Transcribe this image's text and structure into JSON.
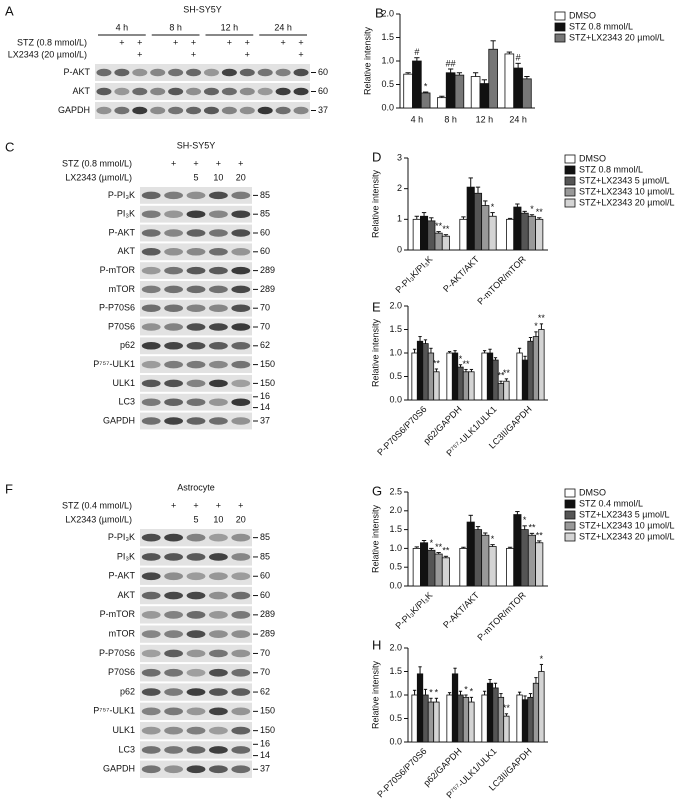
{
  "blots": [
    {
      "label": "A",
      "title": "SH-SY5Y",
      "groups": [
        "4 h",
        "8 h",
        "12 h",
        "24 h"
      ],
      "treatments": [
        {
          "name": "STZ (0.8 mmol/L)",
          "lanes": [
            null,
            "+",
            "+",
            null,
            "+",
            "+",
            null,
            "+",
            "+",
            null,
            "+",
            "+"
          ]
        },
        {
          "name": "LX2343 (20 µmol/L)",
          "lanes": [
            null,
            null,
            "+",
            null,
            null,
            "+",
            null,
            null,
            "+",
            null,
            null,
            "+"
          ]
        }
      ],
      "rows": [
        {
          "name": "P-AKT",
          "mw": [
            60
          ]
        },
        {
          "name": "AKT",
          "mw": [
            60
          ]
        },
        {
          "name": "GAPDH",
          "mw": [
            37
          ]
        }
      ]
    },
    {
      "label": "C",
      "title": "SH-SY5Y",
      "treatments": [
        {
          "name": "STZ (0.8 mmol/L)",
          "lanes": [
            null,
            "+",
            "+",
            "+",
            "+"
          ]
        },
        {
          "name": "LX2343 (µmol/L)",
          "lanes": [
            null,
            null,
            "5",
            "10",
            "20"
          ]
        }
      ],
      "rows": [
        {
          "name": "P-PI₃K",
          "mw": [
            85
          ]
        },
        {
          "name": "PI₃K",
          "mw": [
            85
          ]
        },
        {
          "name": "P-AKT",
          "mw": [
            60
          ]
        },
        {
          "name": "AKT",
          "mw": [
            60
          ]
        },
        {
          "name": "P-mTOR",
          "mw": [
            289
          ]
        },
        {
          "name": "mTOR",
          "mw": [
            289
          ]
        },
        {
          "name": "P-P70S6",
          "mw": [
            70
          ]
        },
        {
          "name": "P70S6",
          "mw": [
            70
          ]
        },
        {
          "name": "p62",
          "mw": [
            62
          ]
        },
        {
          "name": "P⁷⁵⁷-ULK1",
          "mw": [
            150
          ]
        },
        {
          "name": "ULK1",
          "mw": [
            150
          ]
        },
        {
          "name": "LC3",
          "mw": [
            16,
            14
          ]
        },
        {
          "name": "GAPDH",
          "mw": [
            37
          ]
        }
      ]
    },
    {
      "label": "F",
      "title": "Astrocyte",
      "treatments": [
        {
          "name": "STZ (0.4 mmol/L)",
          "lanes": [
            null,
            "+",
            "+",
            "+",
            "+"
          ]
        },
        {
          "name": "LX2343 (µmol/L)",
          "lanes": [
            null,
            null,
            "5",
            "10",
            "20"
          ]
        }
      ],
      "rows": [
        {
          "name": "P-PI₃K",
          "mw": [
            85
          ]
        },
        {
          "name": "PI₃K",
          "mw": [
            85
          ]
        },
        {
          "name": "P-AKT",
          "mw": [
            60
          ]
        },
        {
          "name": "AKT",
          "mw": [
            60
          ]
        },
        {
          "name": "P-mTOR",
          "mw": [
            289
          ]
        },
        {
          "name": "mTOR",
          "mw": [
            289
          ]
        },
        {
          "name": "P-P70S6",
          "mw": [
            70
          ]
        },
        {
          "name": "P70S6",
          "mw": [
            70
          ]
        },
        {
          "name": "p62",
          "mw": [
            62
          ]
        },
        {
          "name": "P⁷⁵⁷-ULK1",
          "mw": [
            150
          ]
        },
        {
          "name": "ULK1",
          "mw": [
            150
          ]
        },
        {
          "name": "LC3",
          "mw": [
            16,
            14
          ]
        },
        {
          "name": "GAPDH",
          "mw": [
            37
          ]
        }
      ]
    }
  ],
  "chart_data": [
    {
      "type": "bar",
      "panel": "B",
      "y_label": "Relative intensity",
      "categories": [
        "4 h",
        "8 h",
        "12 h",
        "24 h"
      ],
      "ylim": [
        0,
        2.0
      ],
      "yticks": [
        {
          "value": 0,
          "label": "0.0"
        },
        {
          "value": 0.5,
          "label": "0.5"
        },
        {
          "value": 1.0,
          "label": "1.0"
        },
        {
          "value": 1.5,
          "label": "1.5"
        },
        {
          "value": 2.0,
          "label": "2.0"
        }
      ],
      "series": [
        {
          "name": "DMSO",
          "color": "#ffffff",
          "values": [
            0.72,
            0.22,
            0.67,
            1.15
          ],
          "errors": [
            0.03,
            0.03,
            0.08,
            0.04
          ]
        },
        {
          "name": "STZ 0.8 mmol/L",
          "color": "#111111",
          "values": [
            1.0,
            0.75,
            0.52,
            0.85
          ],
          "errors": [
            0.07,
            0.08,
            0.08,
            0.1
          ]
        },
        {
          "name": "STZ+LX2343 20 µmol/L",
          "color": "#777777",
          "values": [
            0.32,
            0.7,
            1.25,
            0.62
          ],
          "errors": [
            0.02,
            0.05,
            0.18,
            0.05
          ]
        }
      ],
      "annotations": [
        {
          "text": "#",
          "category": 0,
          "series": 1
        },
        {
          "text": "*",
          "category": 0,
          "series": 2
        },
        {
          "text": "##",
          "category": 1,
          "series": 1
        },
        {
          "text": "#",
          "category": 3,
          "series": 1
        }
      ]
    },
    {
      "type": "bar",
      "panel": "D",
      "y_label": "Relative intensity",
      "categories": [
        "P-PI₃K/PI₃K",
        "P-AKT/AKT",
        "P-mTOR/mTOR"
      ],
      "ylim": [
        0,
        3
      ],
      "yticks": [
        0,
        1,
        2,
        3
      ],
      "series": [
        {
          "name": "DMSO",
          "color": "#ffffff",
          "values": [
            1.0,
            1.0,
            1.0
          ],
          "errors": [
            0.1,
            0.08,
            0.03
          ]
        },
        {
          "name": "STZ 0.8 mmol/L",
          "color": "#111111",
          "values": [
            1.1,
            2.05,
            1.4
          ],
          "errors": [
            0.12,
            0.3,
            0.1
          ]
        },
        {
          "name": "STZ+LX2343 5 µmol/L",
          "color": "#555555",
          "values": [
            0.95,
            1.85,
            1.2
          ],
          "errors": [
            0.1,
            0.2,
            0.06
          ]
        },
        {
          "name": "STZ+LX2343 10 µmol/L",
          "color": "#999999",
          "values": [
            0.55,
            1.45,
            1.1
          ],
          "errors": [
            0.05,
            0.15,
            0.05
          ]
        },
        {
          "name": "STZ+LX2343 20 µmol/L",
          "color": "#d4d4d4",
          "values": [
            0.45,
            1.1,
            1.0
          ],
          "errors": [
            0.05,
            0.12,
            0.05
          ]
        }
      ],
      "annotations": [
        {
          "text": "**",
          "category": 0,
          "series": 3
        },
        {
          "text": "**",
          "category": 0,
          "series": 4
        },
        {
          "text": "*",
          "category": 1,
          "series": 4
        },
        {
          "text": "*",
          "category": 2,
          "series": 3
        },
        {
          "text": "**",
          "category": 2,
          "series": 4
        }
      ]
    },
    {
      "type": "bar",
      "panel": "E",
      "y_label": "Relative intensity",
      "categories": [
        "P-P70S6/P70S6",
        "p62/GAPDH",
        "P⁷⁵⁷-ULK1/ULK1",
        "LC3II/GAPDH"
      ],
      "ylim": [
        0,
        2.0
      ],
      "yticks": [
        {
          "value": 0,
          "label": "0.0"
        },
        {
          "value": 0.5,
          "label": "0.5"
        },
        {
          "value": 1.0,
          "label": "1.0"
        },
        {
          "value": 1.5,
          "label": "1.5"
        },
        {
          "value": 2.0,
          "label": "2.0"
        }
      ],
      "series": [
        {
          "color": "#ffffff",
          "values": [
            1.0,
            1.0,
            1.0,
            1.0
          ],
          "errors": [
            0.08,
            0.03,
            0.05,
            0.1
          ]
        },
        {
          "color": "#111111",
          "values": [
            1.25,
            1.0,
            1.0,
            0.85
          ],
          "errors": [
            0.1,
            0.05,
            0.08,
            0.08
          ]
        },
        {
          "color": "#555555",
          "values": [
            1.2,
            0.7,
            0.85,
            1.25
          ],
          "errors": [
            0.08,
            0.05,
            0.05,
            0.08
          ]
        },
        {
          "color": "#999999",
          "values": [
            1.0,
            0.6,
            0.35,
            1.35
          ],
          "errors": [
            0.1,
            0.05,
            0.05,
            0.1
          ]
        },
        {
          "color": "#d4d4d4",
          "values": [
            0.6,
            0.6,
            0.4,
            1.5
          ],
          "errors": [
            0.06,
            0.05,
            0.05,
            0.12
          ]
        }
      ],
      "annotations": [
        {
          "text": "**",
          "category": 0,
          "series": 4
        },
        {
          "text": "*",
          "category": 1,
          "series": 2
        },
        {
          "text": "**",
          "category": 1,
          "series": 3
        },
        {
          "text": "**",
          "category": 2,
          "series": 3
        },
        {
          "text": "**",
          "category": 2,
          "series": 4
        },
        {
          "text": "*",
          "category": 3,
          "series": 3
        },
        {
          "text": "**",
          "category": 3,
          "series": 4
        }
      ]
    },
    {
      "type": "bar",
      "panel": "G",
      "y_label": "Relative intensity",
      "categories": [
        "P-PI₃K/PI₃K",
        "P-AKT/AKT",
        "P-mTOR/mTOR"
      ],
      "ylim": [
        0,
        2.5
      ],
      "yticks": [
        {
          "value": 0,
          "label": "0.0"
        },
        {
          "value": 0.5,
          "label": "0.5"
        },
        {
          "value": 1.0,
          "label": "1.0"
        },
        {
          "value": 1.5,
          "label": "1.5"
        },
        {
          "value": 2.0,
          "label": "2.0"
        },
        {
          "value": 2.5,
          "label": "2.5"
        }
      ],
      "series": [
        {
          "name": "DMSO",
          "color": "#ffffff",
          "values": [
            1.0,
            1.0,
            1.0
          ],
          "errors": [
            0.04,
            0.03,
            0.03
          ]
        },
        {
          "name": "STZ 0.4 mmol/L",
          "color": "#111111",
          "values": [
            1.15,
            1.7,
            1.9
          ],
          "errors": [
            0.06,
            0.18,
            0.08
          ]
        },
        {
          "name": "STZ+LX2343 5 µmol/L",
          "color": "#555555",
          "values": [
            0.95,
            1.5,
            1.5
          ],
          "errors": [
            0.05,
            0.08,
            0.1
          ]
        },
        {
          "name": "STZ+LX2343 10 µmol/L",
          "color": "#999999",
          "values": [
            0.85,
            1.35,
            1.35
          ],
          "errors": [
            0.04,
            0.06,
            0.05
          ]
        },
        {
          "name": "STZ+LX2343 20 µmol/L",
          "color": "#d4d4d4",
          "values": [
            0.75,
            1.05,
            1.15
          ],
          "errors": [
            0.04,
            0.05,
            0.05
          ]
        }
      ],
      "annotations": [
        {
          "text": "*",
          "category": 0,
          "series": 2
        },
        {
          "text": "**",
          "category": 0,
          "series": 3
        },
        {
          "text": "**",
          "category": 0,
          "series": 4
        },
        {
          "text": "*",
          "category": 1,
          "series": 4
        },
        {
          "text": "*",
          "category": 2,
          "series": 2
        },
        {
          "text": "**",
          "category": 2,
          "series": 3
        },
        {
          "text": "**",
          "category": 2,
          "series": 4
        }
      ]
    },
    {
      "type": "bar",
      "panel": "H",
      "y_label": "Relative intensity",
      "categories": [
        "P-P70S6/P70S6",
        "p62/GAPDH",
        "P⁷⁵⁷-ULK1/ULK1",
        "LC3II/GAPDH"
      ],
      "ylim": [
        0,
        2.0
      ],
      "yticks": [
        {
          "value": 0,
          "label": "0.0"
        },
        {
          "value": 0.5,
          "label": "0.5"
        },
        {
          "value": 1.0,
          "label": "1.0"
        },
        {
          "value": 1.5,
          "label": "1.5"
        },
        {
          "value": 2.0,
          "label": "2.0"
        }
      ],
      "series": [
        {
          "color": "#ffffff",
          "values": [
            1.0,
            1.0,
            1.0,
            1.0
          ],
          "errors": [
            0.1,
            0.05,
            0.08,
            0.06
          ]
        },
        {
          "color": "#111111",
          "values": [
            1.45,
            1.45,
            1.25,
            0.9
          ],
          "errors": [
            0.15,
            0.12,
            0.08,
            0.08
          ]
        },
        {
          "color": "#555555",
          "values": [
            1.0,
            1.0,
            1.15,
            0.95
          ],
          "errors": [
            0.12,
            0.08,
            0.1,
            0.08
          ]
        },
        {
          "color": "#999999",
          "values": [
            0.85,
            0.95,
            0.95,
            1.25
          ],
          "errors": [
            0.08,
            0.05,
            0.08,
            0.12
          ]
        },
        {
          "color": "#d4d4d4",
          "values": [
            0.85,
            0.85,
            0.55,
            1.5
          ],
          "errors": [
            0.08,
            0.1,
            0.05,
            0.15
          ]
        }
      ],
      "annotations": [
        {
          "text": "*",
          "category": 0,
          "series": 3
        },
        {
          "text": "*",
          "category": 0,
          "series": 4
        },
        {
          "text": "*",
          "category": 1,
          "series": 3
        },
        {
          "text": "*",
          "category": 1,
          "series": 4
        },
        {
          "text": "**",
          "category": 2,
          "series": 4
        },
        {
          "text": "*",
          "category": 3,
          "series": 4
        }
      ]
    }
  ]
}
